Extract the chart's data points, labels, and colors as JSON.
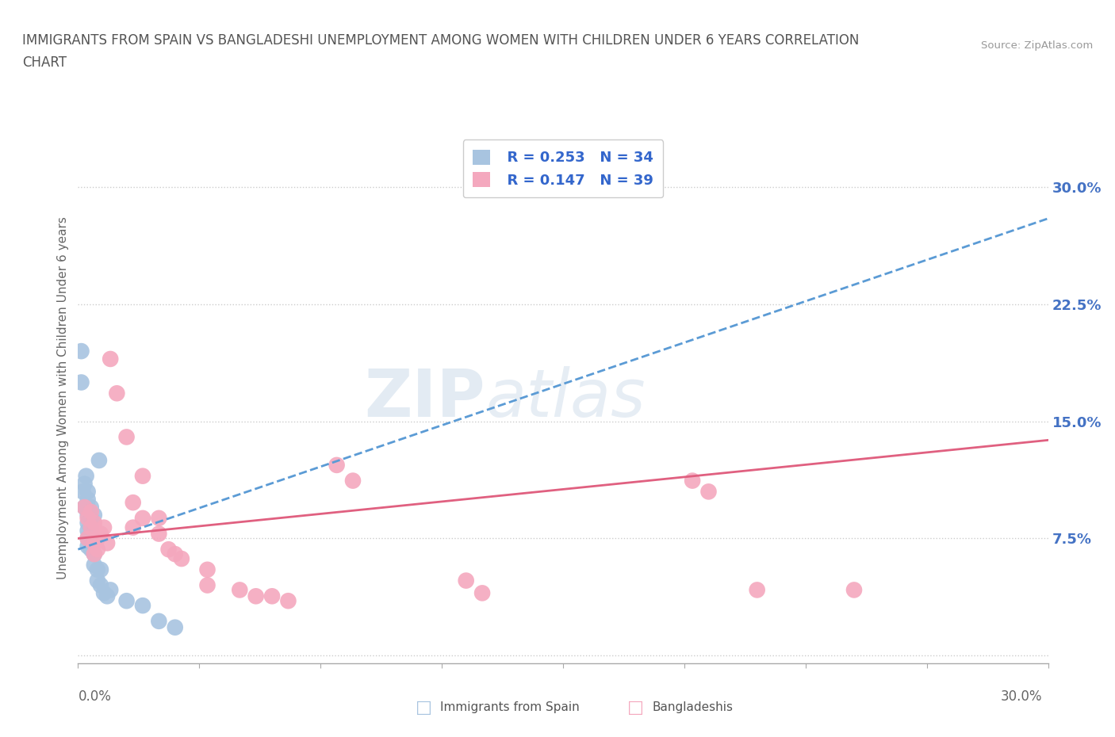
{
  "title_line1": "IMMIGRANTS FROM SPAIN VS BANGLADESHI UNEMPLOYMENT AMONG WOMEN WITH CHILDREN UNDER 6 YEARS CORRELATION",
  "title_line2": "CHART",
  "source": "Source: ZipAtlas.com",
  "ylabel": "Unemployment Among Women with Children Under 6 years",
  "xlim": [
    0.0,
    0.3
  ],
  "ylim": [
    -0.005,
    0.335
  ],
  "yticks": [
    0.0,
    0.075,
    0.15,
    0.225,
    0.3
  ],
  "ytick_labels": [
    "",
    "7.5%",
    "15.0%",
    "22.5%",
    "30.0%"
  ],
  "xticks": [
    0.0,
    0.0375,
    0.075,
    0.1125,
    0.15,
    0.1875,
    0.225,
    0.2625,
    0.3
  ],
  "xtick_labels": [
    "0.0%",
    "",
    "",
    "",
    "",
    "",
    "",
    "",
    "30.0%"
  ],
  "legend_r1": "R = 0.253",
  "legend_n1": "N = 34",
  "legend_r2": "R = 0.147",
  "legend_n2": "N = 39",
  "blue_color": "#a8c4e0",
  "pink_color": "#f4a8be",
  "blue_line_color": "#5b9bd5",
  "pink_line_color": "#e06080",
  "blue_scatter": [
    [
      0.001,
      0.195
    ],
    [
      0.001,
      0.175
    ],
    [
      0.0015,
      0.105
    ],
    [
      0.002,
      0.11
    ],
    [
      0.002,
      0.095
    ],
    [
      0.0025,
      0.115
    ],
    [
      0.003,
      0.105
    ],
    [
      0.003,
      0.1
    ],
    [
      0.003,
      0.095
    ],
    [
      0.003,
      0.09
    ],
    [
      0.003,
      0.085
    ],
    [
      0.003,
      0.08
    ],
    [
      0.003,
      0.075
    ],
    [
      0.003,
      0.07
    ],
    [
      0.004,
      0.095
    ],
    [
      0.004,
      0.088
    ],
    [
      0.004,
      0.082
    ],
    [
      0.004,
      0.075
    ],
    [
      0.004,
      0.068
    ],
    [
      0.005,
      0.09
    ],
    [
      0.005,
      0.065
    ],
    [
      0.005,
      0.058
    ],
    [
      0.006,
      0.055
    ],
    [
      0.006,
      0.048
    ],
    [
      0.0065,
      0.125
    ],
    [
      0.007,
      0.055
    ],
    [
      0.007,
      0.045
    ],
    [
      0.008,
      0.04
    ],
    [
      0.009,
      0.038
    ],
    [
      0.01,
      0.042
    ],
    [
      0.015,
      0.035
    ],
    [
      0.02,
      0.032
    ],
    [
      0.025,
      0.022
    ],
    [
      0.03,
      0.018
    ]
  ],
  "pink_scatter": [
    [
      0.002,
      0.095
    ],
    [
      0.003,
      0.088
    ],
    [
      0.003,
      0.075
    ],
    [
      0.004,
      0.092
    ],
    [
      0.004,
      0.082
    ],
    [
      0.005,
      0.085
    ],
    [
      0.005,
      0.072
    ],
    [
      0.005,
      0.065
    ],
    [
      0.006,
      0.075
    ],
    [
      0.006,
      0.068
    ],
    [
      0.007,
      0.078
    ],
    [
      0.008,
      0.082
    ],
    [
      0.009,
      0.072
    ],
    [
      0.01,
      0.19
    ],
    [
      0.012,
      0.168
    ],
    [
      0.015,
      0.14
    ],
    [
      0.017,
      0.098
    ],
    [
      0.017,
      0.082
    ],
    [
      0.02,
      0.115
    ],
    [
      0.02,
      0.088
    ],
    [
      0.025,
      0.088
    ],
    [
      0.025,
      0.078
    ],
    [
      0.028,
      0.068
    ],
    [
      0.03,
      0.065
    ],
    [
      0.032,
      0.062
    ],
    [
      0.04,
      0.055
    ],
    [
      0.04,
      0.045
    ],
    [
      0.05,
      0.042
    ],
    [
      0.055,
      0.038
    ],
    [
      0.06,
      0.038
    ],
    [
      0.065,
      0.035
    ],
    [
      0.08,
      0.122
    ],
    [
      0.085,
      0.112
    ],
    [
      0.12,
      0.048
    ],
    [
      0.125,
      0.04
    ],
    [
      0.19,
      0.112
    ],
    [
      0.195,
      0.105
    ],
    [
      0.21,
      0.042
    ],
    [
      0.24,
      0.042
    ]
  ],
  "blue_trend_x": [
    0.0,
    0.3
  ],
  "blue_trend_y": [
    0.068,
    0.28
  ],
  "pink_trend_x": [
    0.0,
    0.3
  ],
  "pink_trend_y": [
    0.075,
    0.138
  ]
}
